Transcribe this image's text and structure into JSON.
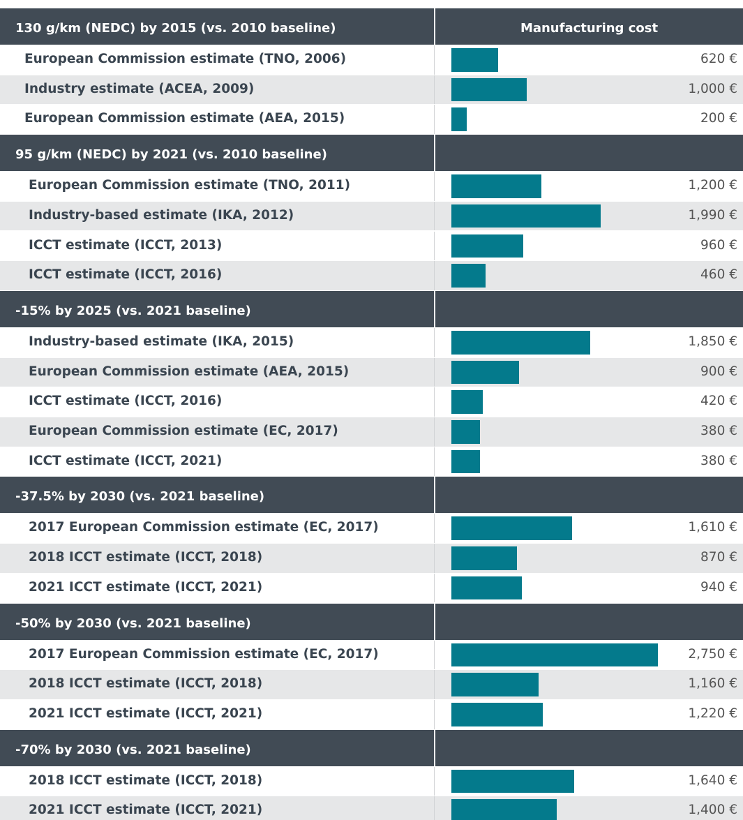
{
  "column_header": "Manufacturing cost",
  "groups": [
    {
      "title": "130 g/km (NEDC) by 2015 (vs. 2010 baseline)",
      "rows": [
        {
          "label": "European Commission estimate (TNO, 2006)",
          "value": 620,
          "value_label": "620 €"
        },
        {
          "label": "Industry estimate (ACEA, 2009)",
          "value": 1000,
          "value_label": "1,000 €"
        },
        {
          "label": "European Commission estimate (AEA, 2015)",
          "value": 200,
          "value_label": "200 €"
        }
      ]
    },
    {
      "title": "95 g/km (NEDC) by 2021 (vs. 2010 baseline)",
      "rows": [
        {
          "label": "European Commission estimate (TNO, 2011)",
          "value": 1200,
          "value_label": "1,200 €"
        },
        {
          "label": "Industry-based estimate (IKA, 2012)",
          "value": 1990,
          "value_label": "1,990 €"
        },
        {
          "label": "ICCT estimate (ICCT, 2013)",
          "value": 960,
          "value_label": "960 €"
        },
        {
          "label": "ICCT estimate (ICCT, 2016)",
          "value": 460,
          "value_label": "460 €"
        }
      ]
    },
    {
      "title": "-15% by 2025 (vs. 2021 baseline)",
      "rows": [
        {
          "label": "Industry-based estimate (IKA, 2015)",
          "value": 1850,
          "value_label": "1,850 €"
        },
        {
          "label": "European Commission estimate (AEA, 2015)",
          "value": 900,
          "value_label": "900 €"
        },
        {
          "label": "ICCT estimate (ICCT, 2016)",
          "value": 420,
          "value_label": "420 €"
        },
        {
          "label": "European Commission estimate (EC, 2017)",
          "value": 380,
          "value_label": "380 €"
        },
        {
          "label": "ICCT estimate (ICCT, 2021)",
          "value": 380,
          "value_label": "380 €"
        }
      ]
    },
    {
      "title": "-37.5% by 2030 (vs. 2021 baseline)",
      "rows": [
        {
          "label": "2017 European Commission estimate (EC, 2017)",
          "value": 1610,
          "value_label": "1,610 €"
        },
        {
          "label": "2018 ICCT estimate (ICCT, 2018)",
          "value": 870,
          "value_label": "870 €"
        },
        {
          "label": "2021 ICCT estimate (ICCT, 2021)",
          "value": 940,
          "value_label": "940 €"
        }
      ]
    },
    {
      "title": "-50% by 2030 (vs. 2021 baseline)",
      "rows": [
        {
          "label": "2017 European Commission estimate (EC, 2017)",
          "value": 2750,
          "value_label": "2,750 €"
        },
        {
          "label": "2018 ICCT estimate (ICCT, 2018)",
          "value": 1160,
          "value_label": "1,160 €"
        },
        {
          "label": "2021 ICCT estimate (ICCT, 2021)",
          "value": 1220,
          "value_label": "1,220 €"
        }
      ]
    },
    {
      "title": "-70% by 2030 (vs. 2021 baseline)",
      "rows": [
        {
          "label": "2018 ICCT estimate (ICCT, 2018)",
          "value": 1640,
          "value_label": "1,640 €"
        },
        {
          "label": "2021 ICCT estimate (ICCT, 2021)",
          "value": 1400,
          "value_label": "1,400 €"
        }
      ]
    }
  ]
}
